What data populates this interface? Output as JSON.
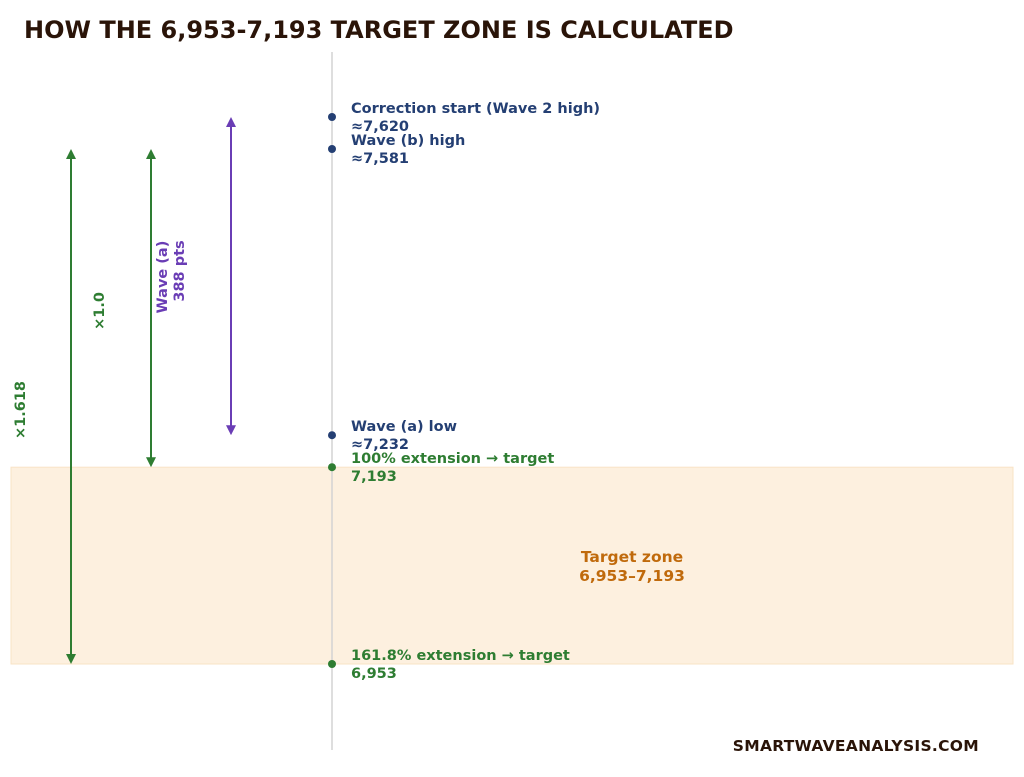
{
  "title": "HOW THE 6,953-7,193 TARGET ZONE IS CALCULATED",
  "brand": "SMARTWAVEANALYSIS.COM",
  "colors": {
    "navy": "#243f73",
    "green": "#2e7d32",
    "purple": "#6a3db5",
    "orange": "#c06a0c",
    "zone_fill": "#fdf0df",
    "axis": "#d3d3d3",
    "title": "#2a1408"
  },
  "levels": [
    {
      "id": "correction-start",
      "line1": "Correction start (Wave 2 high)",
      "line2": "≈7,620",
      "value": 7620,
      "color": "navy"
    },
    {
      "id": "wave-b-high",
      "line1": "Wave (b) high",
      "line2": "≈7,581",
      "value": 7581,
      "color": "navy"
    },
    {
      "id": "wave-a-low",
      "line1": "Wave (a) low",
      "line2": "≈7,232",
      "value": 7232,
      "color": "navy"
    },
    {
      "id": "ext-100",
      "line1": "100% extension → target",
      "line2": "7,193",
      "value": 7193,
      "color": "green"
    },
    {
      "id": "ext-161",
      "line1": "161.8% extension → target",
      "line2": "6,953",
      "value": 6953,
      "color": "green"
    }
  ],
  "arrows": [
    {
      "id": "ratio-1618",
      "label1": "×1.618",
      "label2": "",
      "from": 7581,
      "to": 6953,
      "color": "green"
    },
    {
      "id": "ratio-1",
      "label1": "×1.0",
      "label2": "",
      "from": 7581,
      "to": 7193,
      "color": "green"
    },
    {
      "id": "wave-a-length",
      "label1": "Wave (a)",
      "label2": "388 pts",
      "from": 7620,
      "to": 7232,
      "color": "purple"
    }
  ],
  "zone": {
    "label1": "Target zone",
    "label2": "6,953–7,193",
    "low": 6953,
    "high": 7193
  }
}
